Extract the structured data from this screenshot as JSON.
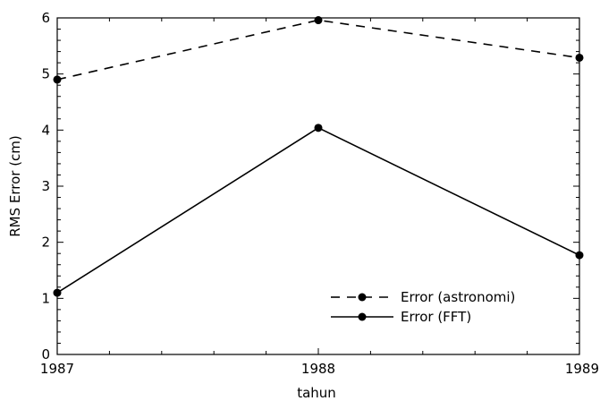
{
  "chart_data": {
    "type": "line",
    "title": "",
    "xlabel": "tahun",
    "ylabel": "RMS Error (cm)",
    "x": [
      1987,
      1988,
      1989
    ],
    "xlim": [
      1987,
      1989
    ],
    "ylim": [
      0,
      6
    ],
    "xticks": [
      "1987",
      "1988",
      "1989"
    ],
    "yticks": [
      "0",
      "1",
      "2",
      "3",
      "4",
      "5",
      "6"
    ],
    "grid": false,
    "legend_position": "lower-right",
    "series": [
      {
        "name": "Error (astronomi)",
        "values": [
          4.9,
          5.96,
          5.29
        ],
        "line_style": "dashed",
        "color": "#000000"
      },
      {
        "name": "Error (FFT)",
        "values": [
          1.1,
          4.04,
          1.77
        ],
        "line_style": "solid",
        "color": "#000000"
      }
    ]
  }
}
